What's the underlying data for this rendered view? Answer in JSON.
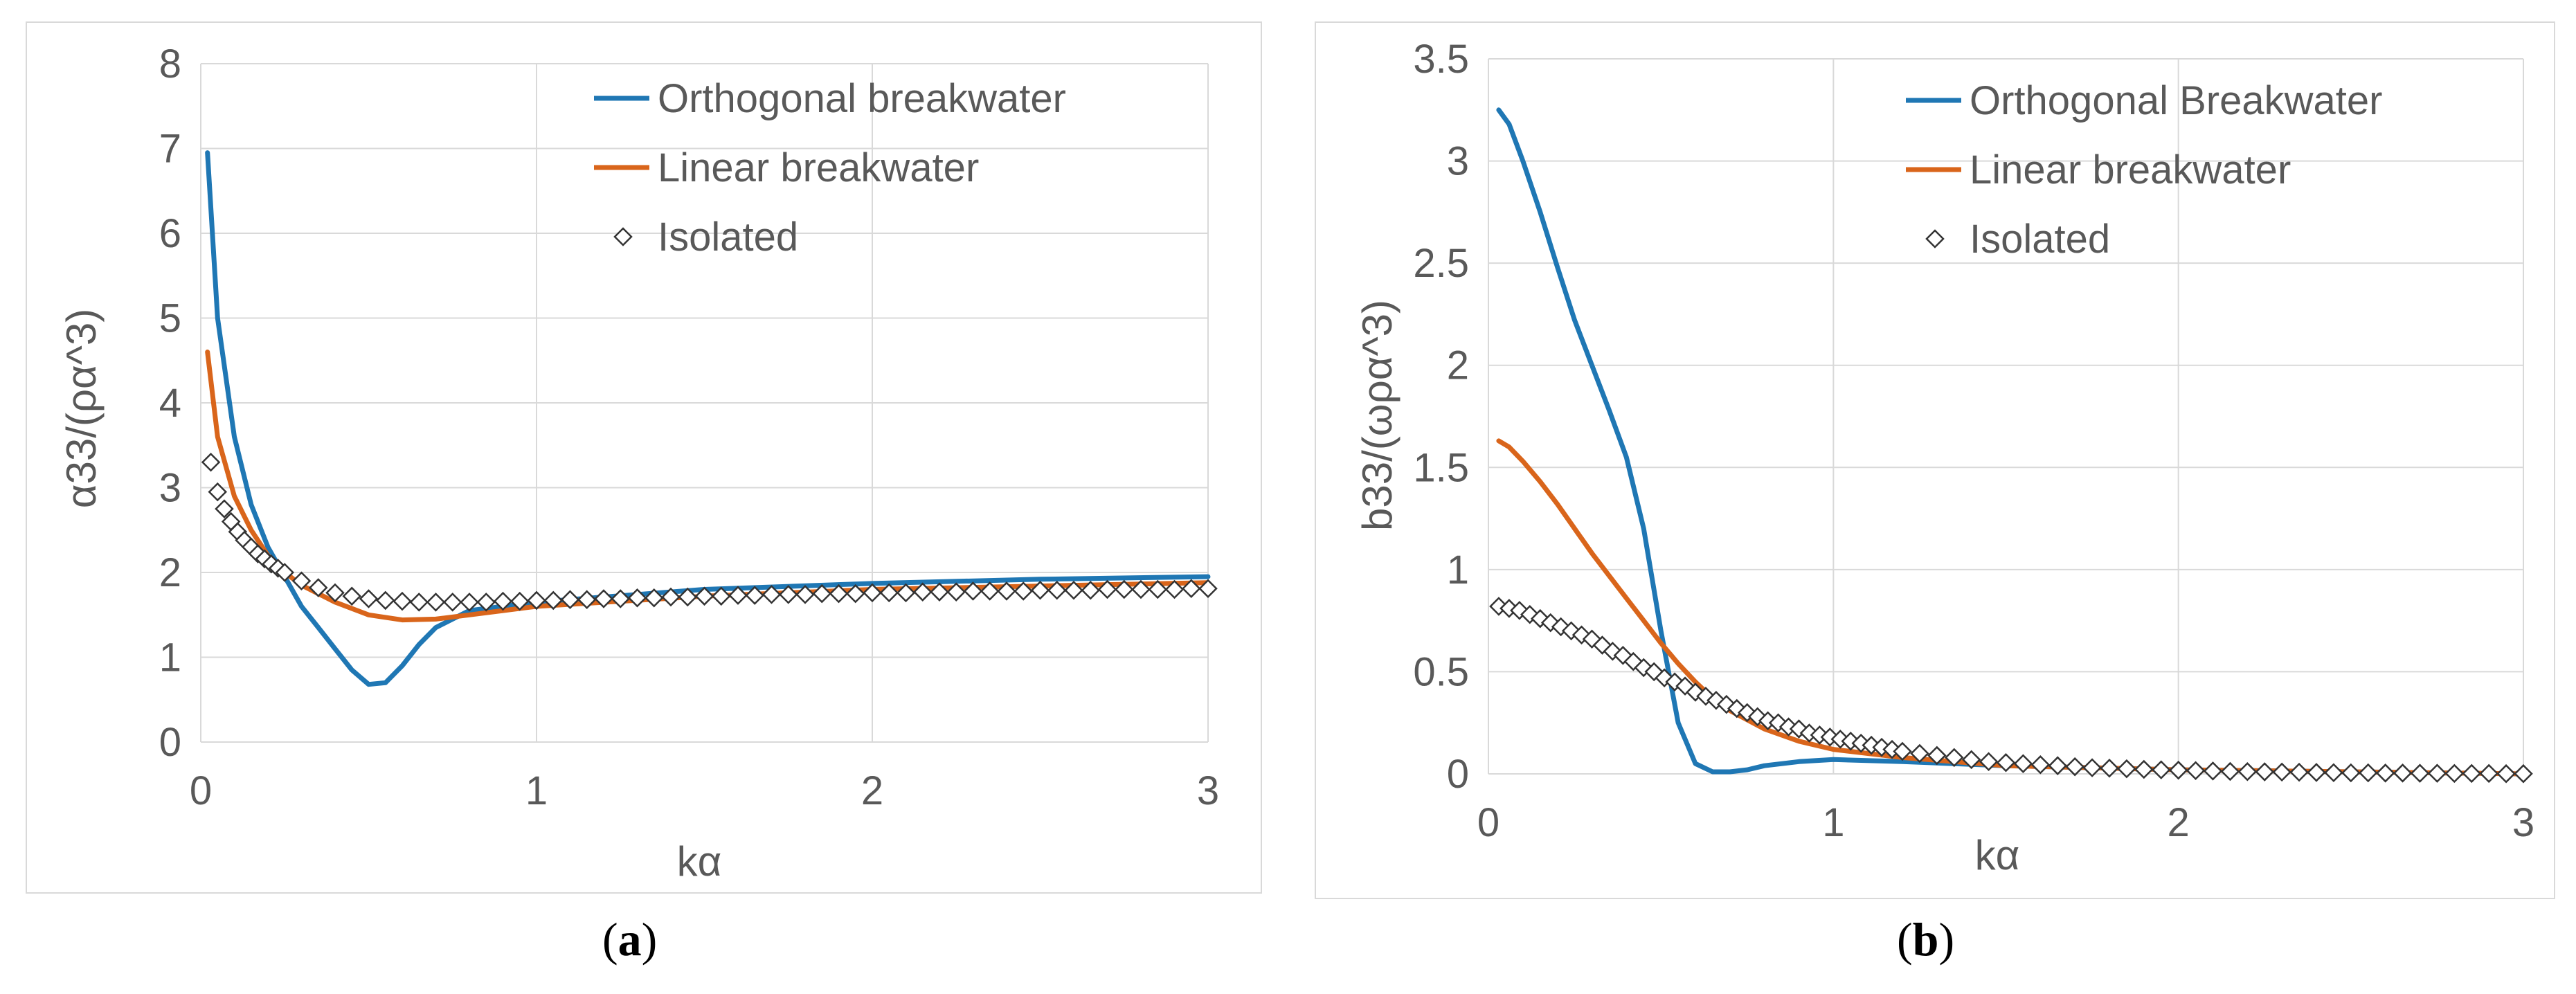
{
  "chart_data": [
    {
      "type": "line",
      "panel_label": "a",
      "xlabel": "kα",
      "ylabel": "α33/(ρα^3)",
      "xlim": [
        0,
        3
      ],
      "ylim": [
        0,
        8
      ],
      "xticks": [
        "0",
        "1",
        "2",
        "3"
      ],
      "yticks": [
        "0",
        "1",
        "2",
        "3",
        "4",
        "5",
        "6",
        "7",
        "8"
      ],
      "grid": true,
      "legend_position": "top-right",
      "series": [
        {
          "name": "Orthogonal breakwater",
          "color": "#1f77b4",
          "marker": "line",
          "x": [
            0.02,
            0.05,
            0.1,
            0.15,
            0.2,
            0.25,
            0.3,
            0.35,
            0.4,
            0.45,
            0.5,
            0.55,
            0.6,
            0.65,
            0.7,
            0.8,
            1.0,
            1.5,
            2.0,
            2.5,
            3.0
          ],
          "y": [
            6.95,
            5.0,
            3.6,
            2.8,
            2.3,
            1.95,
            1.6,
            1.35,
            1.1,
            0.85,
            0.68,
            0.7,
            0.9,
            1.15,
            1.35,
            1.55,
            1.65,
            1.8,
            1.87,
            1.92,
            1.95
          ]
        },
        {
          "name": "Linear breakwater",
          "color": "#d9651b",
          "marker": "line",
          "x": [
            0.02,
            0.05,
            0.1,
            0.15,
            0.2,
            0.25,
            0.3,
            0.4,
            0.5,
            0.6,
            0.7,
            0.8,
            0.9,
            1.0,
            1.5,
            2.0,
            2.5,
            3.0
          ],
          "y": [
            4.6,
            3.6,
            2.9,
            2.5,
            2.2,
            2.0,
            1.85,
            1.65,
            1.5,
            1.44,
            1.45,
            1.5,
            1.55,
            1.6,
            1.72,
            1.8,
            1.84,
            1.88
          ]
        },
        {
          "name": "Isolated",
          "color": "#333333",
          "marker": "diamond",
          "x": [
            0.03,
            0.05,
            0.07,
            0.09,
            0.11,
            0.13,
            0.15,
            0.17,
            0.19,
            0.21,
            0.23,
            0.25,
            0.3,
            0.35,
            0.4,
            0.45,
            0.5,
            0.55,
            0.6,
            0.65,
            0.7,
            0.75,
            0.8,
            0.85,
            0.9,
            0.95,
            1.0,
            1.05,
            1.1,
            1.15,
            1.2,
            1.25,
            1.3,
            1.35,
            1.4,
            1.45,
            1.5,
            1.55,
            1.6,
            1.65,
            1.7,
            1.75,
            1.8,
            1.85,
            1.9,
            1.95,
            2.0,
            2.05,
            2.1,
            2.15,
            2.2,
            2.25,
            2.3,
            2.35,
            2.4,
            2.45,
            2.5,
            2.55,
            2.6,
            2.65,
            2.7,
            2.75,
            2.8,
            2.85,
            2.9,
            2.95,
            3.0
          ],
          "y": [
            3.3,
            2.95,
            2.75,
            2.6,
            2.48,
            2.38,
            2.3,
            2.22,
            2.16,
            2.1,
            2.05,
            2.0,
            1.9,
            1.82,
            1.76,
            1.72,
            1.69,
            1.67,
            1.66,
            1.65,
            1.65,
            1.65,
            1.65,
            1.65,
            1.66,
            1.66,
            1.67,
            1.67,
            1.68,
            1.68,
            1.69,
            1.69,
            1.7,
            1.7,
            1.71,
            1.71,
            1.72,
            1.72,
            1.73,
            1.73,
            1.74,
            1.74,
            1.74,
            1.75,
            1.75,
            1.75,
            1.76,
            1.76,
            1.76,
            1.77,
            1.77,
            1.77,
            1.78,
            1.78,
            1.78,
            1.78,
            1.79,
            1.79,
            1.79,
            1.79,
            1.8,
            1.8,
            1.8,
            1.8,
            1.8,
            1.81,
            1.81
          ]
        }
      ]
    },
    {
      "type": "line",
      "panel_label": "b",
      "xlabel": "kα",
      "ylabel": "b33/(ωρα^3)",
      "xlim": [
        0,
        3
      ],
      "ylim": [
        0,
        3.5
      ],
      "xticks": [
        "0",
        "1",
        "2",
        "3"
      ],
      "yticks": [
        "0",
        "0.5",
        "1",
        "1.5",
        "2",
        "2.5",
        "3",
        "3.5"
      ],
      "grid": true,
      "legend_position": "top-right",
      "series": [
        {
          "name": "Orthogonal Breakwater",
          "color": "#1f77b4",
          "marker": "line",
          "x": [
            0.03,
            0.06,
            0.1,
            0.15,
            0.2,
            0.25,
            0.3,
            0.35,
            0.4,
            0.45,
            0.5,
            0.55,
            0.6,
            0.65,
            0.7,
            0.75,
            0.8,
            0.9,
            1.0,
            1.2,
            1.5,
            2.0,
            2.5,
            3.0
          ],
          "y": [
            3.25,
            3.18,
            3.0,
            2.75,
            2.48,
            2.22,
            2.0,
            1.78,
            1.55,
            1.2,
            0.7,
            0.25,
            0.05,
            0.01,
            0.01,
            0.02,
            0.04,
            0.06,
            0.07,
            0.06,
            0.04,
            0.02,
            0.01,
            0.0
          ]
        },
        {
          "name": "Linear breakwater",
          "color": "#d9651b",
          "marker": "line",
          "x": [
            0.03,
            0.06,
            0.1,
            0.15,
            0.2,
            0.25,
            0.3,
            0.35,
            0.4,
            0.45,
            0.5,
            0.55,
            0.6,
            0.65,
            0.7,
            0.8,
            0.9,
            1.0,
            1.2,
            1.5,
            2.0,
            2.5,
            3.0
          ],
          "y": [
            1.63,
            1.6,
            1.53,
            1.43,
            1.32,
            1.2,
            1.08,
            0.97,
            0.86,
            0.75,
            0.64,
            0.54,
            0.45,
            0.37,
            0.31,
            0.22,
            0.16,
            0.12,
            0.08,
            0.04,
            0.02,
            0.01,
            0.0
          ]
        },
        {
          "name": "Isolated",
          "color": "#333333",
          "marker": "diamond",
          "x": [
            0.03,
            0.06,
            0.09,
            0.12,
            0.15,
            0.18,
            0.21,
            0.24,
            0.27,
            0.3,
            0.33,
            0.36,
            0.39,
            0.42,
            0.45,
            0.48,
            0.51,
            0.54,
            0.57,
            0.6,
            0.63,
            0.66,
            0.69,
            0.72,
            0.75,
            0.78,
            0.81,
            0.84,
            0.87,
            0.9,
            0.93,
            0.96,
            0.99,
            1.02,
            1.05,
            1.08,
            1.11,
            1.14,
            1.17,
            1.2,
            1.25,
            1.3,
            1.35,
            1.4,
            1.45,
            1.5,
            1.55,
            1.6,
            1.65,
            1.7,
            1.75,
            1.8,
            1.85,
            1.9,
            1.95,
            2.0,
            2.05,
            2.1,
            2.15,
            2.2,
            2.25,
            2.3,
            2.35,
            2.4,
            2.45,
            2.5,
            2.55,
            2.6,
            2.65,
            2.7,
            2.75,
            2.8,
            2.85,
            2.9,
            2.95,
            3.0
          ],
          "y": [
            0.82,
            0.81,
            0.8,
            0.78,
            0.76,
            0.74,
            0.72,
            0.7,
            0.68,
            0.66,
            0.63,
            0.6,
            0.58,
            0.55,
            0.52,
            0.5,
            0.47,
            0.45,
            0.43,
            0.4,
            0.38,
            0.36,
            0.34,
            0.32,
            0.3,
            0.28,
            0.26,
            0.25,
            0.23,
            0.22,
            0.2,
            0.19,
            0.18,
            0.17,
            0.16,
            0.15,
            0.14,
            0.13,
            0.12,
            0.11,
            0.1,
            0.09,
            0.08,
            0.07,
            0.06,
            0.055,
            0.05,
            0.045,
            0.04,
            0.035,
            0.03,
            0.028,
            0.025,
            0.022,
            0.02,
            0.018,
            0.016,
            0.014,
            0.012,
            0.011,
            0.01,
            0.009,
            0.008,
            0.007,
            0.006,
            0.005,
            0.005,
            0.004,
            0.004,
            0.003,
            0.003,
            0.002,
            0.002,
            0.002,
            0.001,
            0.001
          ]
        }
      ]
    }
  ],
  "captions": {
    "a": {
      "open": "(",
      "label": "a",
      "close": ")"
    },
    "b": {
      "open": "(",
      "label": "b",
      "close": ")"
    }
  }
}
